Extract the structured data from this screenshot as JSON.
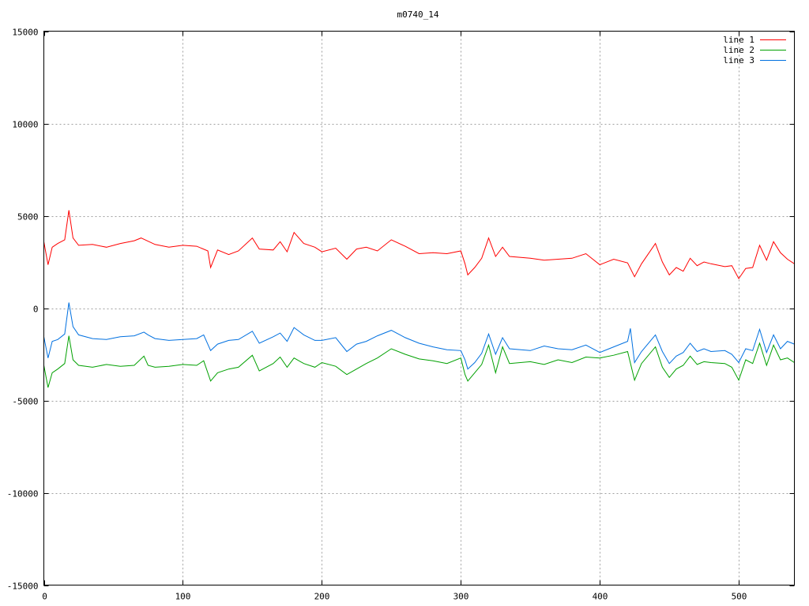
{
  "chart_data": {
    "type": "line",
    "title": "m0740_14",
    "xlabel": "",
    "ylabel": "",
    "xlim": [
      0,
      540
    ],
    "ylim": [
      -15000,
      15000
    ],
    "x_ticks": [
      0,
      100,
      200,
      300,
      400,
      500
    ],
    "y_ticks": [
      -15000,
      -10000,
      -5000,
      0,
      5000,
      10000,
      15000
    ],
    "grid": true,
    "legend_position": "top-right",
    "series": [
      {
        "name": "line 1",
        "color": "#ff0000",
        "points": [
          [
            0,
            3600
          ],
          [
            3,
            2350
          ],
          [
            6,
            3300
          ],
          [
            10,
            3500
          ],
          [
            15,
            3700
          ],
          [
            18,
            5300
          ],
          [
            21,
            3800
          ],
          [
            25,
            3400
          ],
          [
            35,
            3450
          ],
          [
            45,
            3300
          ],
          [
            55,
            3500
          ],
          [
            65,
            3650
          ],
          [
            70,
            3800
          ],
          [
            80,
            3450
          ],
          [
            90,
            3300
          ],
          [
            100,
            3400
          ],
          [
            110,
            3350
          ],
          [
            118,
            3100
          ],
          [
            120,
            2200
          ],
          [
            125,
            3150
          ],
          [
            133,
            2900
          ],
          [
            140,
            3100
          ],
          [
            150,
            3800
          ],
          [
            155,
            3200
          ],
          [
            165,
            3150
          ],
          [
            170,
            3600
          ],
          [
            175,
            3050
          ],
          [
            180,
            4100
          ],
          [
            187,
            3500
          ],
          [
            195,
            3300
          ],
          [
            200,
            3050
          ],
          [
            210,
            3250
          ],
          [
            218,
            2650
          ],
          [
            225,
            3200
          ],
          [
            232,
            3300
          ],
          [
            240,
            3100
          ],
          [
            250,
            3700
          ],
          [
            260,
            3350
          ],
          [
            270,
            2950
          ],
          [
            280,
            3000
          ],
          [
            290,
            2950
          ],
          [
            300,
            3100
          ],
          [
            303,
            2400
          ],
          [
            305,
            1800
          ],
          [
            310,
            2200
          ],
          [
            315,
            2700
          ],
          [
            320,
            3800
          ],
          [
            325,
            2800
          ],
          [
            330,
            3300
          ],
          [
            335,
            2800
          ],
          [
            350,
            2700
          ],
          [
            360,
            2600
          ],
          [
            370,
            2650
          ],
          [
            380,
            2700
          ],
          [
            390,
            2950
          ],
          [
            400,
            2350
          ],
          [
            410,
            2650
          ],
          [
            420,
            2450
          ],
          [
            425,
            1700
          ],
          [
            430,
            2400
          ],
          [
            440,
            3500
          ],
          [
            445,
            2500
          ],
          [
            450,
            1800
          ],
          [
            455,
            2200
          ],
          [
            460,
            2000
          ],
          [
            465,
            2700
          ],
          [
            470,
            2300
          ],
          [
            475,
            2500
          ],
          [
            480,
            2400
          ],
          [
            490,
            2250
          ],
          [
            495,
            2300
          ],
          [
            500,
            1600
          ],
          [
            505,
            2150
          ],
          [
            510,
            2200
          ],
          [
            515,
            3400
          ],
          [
            520,
            2600
          ],
          [
            525,
            3600
          ],
          [
            530,
            3000
          ],
          [
            535,
            2650
          ],
          [
            540,
            2400
          ]
        ]
      },
      {
        "name": "line 2",
        "color": "#00a000",
        "points": [
          [
            0,
            -3100
          ],
          [
            3,
            -4300
          ],
          [
            6,
            -3500
          ],
          [
            10,
            -3300
          ],
          [
            15,
            -3000
          ],
          [
            18,
            -1500
          ],
          [
            21,
            -2800
          ],
          [
            25,
            -3100
          ],
          [
            35,
            -3200
          ],
          [
            45,
            -3050
          ],
          [
            55,
            -3150
          ],
          [
            65,
            -3100
          ],
          [
            72,
            -2600
          ],
          [
            75,
            -3100
          ],
          [
            80,
            -3200
          ],
          [
            90,
            -3150
          ],
          [
            100,
            -3050
          ],
          [
            110,
            -3100
          ],
          [
            115,
            -2850
          ],
          [
            120,
            -3950
          ],
          [
            125,
            -3500
          ],
          [
            133,
            -3300
          ],
          [
            140,
            -3200
          ],
          [
            150,
            -2550
          ],
          [
            155,
            -3400
          ],
          [
            165,
            -3000
          ],
          [
            170,
            -2650
          ],
          [
            175,
            -3200
          ],
          [
            180,
            -2700
          ],
          [
            187,
            -3000
          ],
          [
            195,
            -3200
          ],
          [
            200,
            -2950
          ],
          [
            210,
            -3150
          ],
          [
            218,
            -3600
          ],
          [
            225,
            -3300
          ],
          [
            232,
            -3000
          ],
          [
            240,
            -2700
          ],
          [
            250,
            -2200
          ],
          [
            260,
            -2500
          ],
          [
            270,
            -2750
          ],
          [
            280,
            -2850
          ],
          [
            290,
            -3000
          ],
          [
            300,
            -2700
          ],
          [
            303,
            -3600
          ],
          [
            305,
            -3950
          ],
          [
            310,
            -3500
          ],
          [
            315,
            -3050
          ],
          [
            320,
            -2000
          ],
          [
            325,
            -3500
          ],
          [
            330,
            -2100
          ],
          [
            335,
            -3000
          ],
          [
            350,
            -2900
          ],
          [
            360,
            -3050
          ],
          [
            370,
            -2800
          ],
          [
            380,
            -2950
          ],
          [
            390,
            -2650
          ],
          [
            400,
            -2700
          ],
          [
            410,
            -2550
          ],
          [
            420,
            -2350
          ],
          [
            425,
            -3900
          ],
          [
            430,
            -3000
          ],
          [
            440,
            -2100
          ],
          [
            445,
            -3200
          ],
          [
            450,
            -3750
          ],
          [
            455,
            -3300
          ],
          [
            460,
            -3100
          ],
          [
            465,
            -2600
          ],
          [
            470,
            -3050
          ],
          [
            475,
            -2900
          ],
          [
            480,
            -2950
          ],
          [
            490,
            -3000
          ],
          [
            495,
            -3200
          ],
          [
            500,
            -3900
          ],
          [
            505,
            -2800
          ],
          [
            510,
            -3000
          ],
          [
            515,
            -1900
          ],
          [
            520,
            -3100
          ],
          [
            525,
            -2000
          ],
          [
            530,
            -2800
          ],
          [
            535,
            -2700
          ],
          [
            540,
            -2950
          ]
        ]
      },
      {
        "name": "line 3",
        "color": "#0070e0",
        "points": [
          [
            0,
            -1550
          ],
          [
            3,
            -2700
          ],
          [
            6,
            -1800
          ],
          [
            10,
            -1700
          ],
          [
            15,
            -1400
          ],
          [
            18,
            300
          ],
          [
            21,
            -1000
          ],
          [
            25,
            -1450
          ],
          [
            35,
            -1650
          ],
          [
            45,
            -1700
          ],
          [
            55,
            -1550
          ],
          [
            65,
            -1500
          ],
          [
            72,
            -1300
          ],
          [
            75,
            -1450
          ],
          [
            80,
            -1650
          ],
          [
            90,
            -1750
          ],
          [
            100,
            -1700
          ],
          [
            110,
            -1650
          ],
          [
            115,
            -1450
          ],
          [
            120,
            -2300
          ],
          [
            125,
            -1950
          ],
          [
            133,
            -1750
          ],
          [
            140,
            -1700
          ],
          [
            150,
            -1250
          ],
          [
            155,
            -1900
          ],
          [
            165,
            -1550
          ],
          [
            170,
            -1350
          ],
          [
            175,
            -1800
          ],
          [
            180,
            -1050
          ],
          [
            187,
            -1450
          ],
          [
            195,
            -1750
          ],
          [
            200,
            -1750
          ],
          [
            210,
            -1600
          ],
          [
            218,
            -2350
          ],
          [
            225,
            -1950
          ],
          [
            232,
            -1800
          ],
          [
            240,
            -1500
          ],
          [
            250,
            -1200
          ],
          [
            260,
            -1600
          ],
          [
            270,
            -1900
          ],
          [
            280,
            -2100
          ],
          [
            290,
            -2250
          ],
          [
            300,
            -2300
          ],
          [
            303,
            -2800
          ],
          [
            305,
            -3300
          ],
          [
            310,
            -2950
          ],
          [
            315,
            -2450
          ],
          [
            320,
            -1400
          ],
          [
            325,
            -2500
          ],
          [
            330,
            -1600
          ],
          [
            335,
            -2200
          ],
          [
            350,
            -2300
          ],
          [
            360,
            -2050
          ],
          [
            370,
            -2200
          ],
          [
            380,
            -2250
          ],
          [
            390,
            -2000
          ],
          [
            400,
            -2400
          ],
          [
            410,
            -2100
          ],
          [
            420,
            -1800
          ],
          [
            422,
            -1100
          ],
          [
            425,
            -2950
          ],
          [
            430,
            -2350
          ],
          [
            440,
            -1450
          ],
          [
            445,
            -2350
          ],
          [
            450,
            -3000
          ],
          [
            455,
            -2600
          ],
          [
            460,
            -2400
          ],
          [
            465,
            -1900
          ],
          [
            470,
            -2350
          ],
          [
            475,
            -2200
          ],
          [
            480,
            -2350
          ],
          [
            490,
            -2300
          ],
          [
            495,
            -2500
          ],
          [
            500,
            -2950
          ],
          [
            505,
            -2200
          ],
          [
            510,
            -2300
          ],
          [
            515,
            -1150
          ],
          [
            520,
            -2400
          ],
          [
            525,
            -1450
          ],
          [
            530,
            -2200
          ],
          [
            535,
            -1800
          ],
          [
            540,
            -1950
          ]
        ]
      }
    ]
  }
}
